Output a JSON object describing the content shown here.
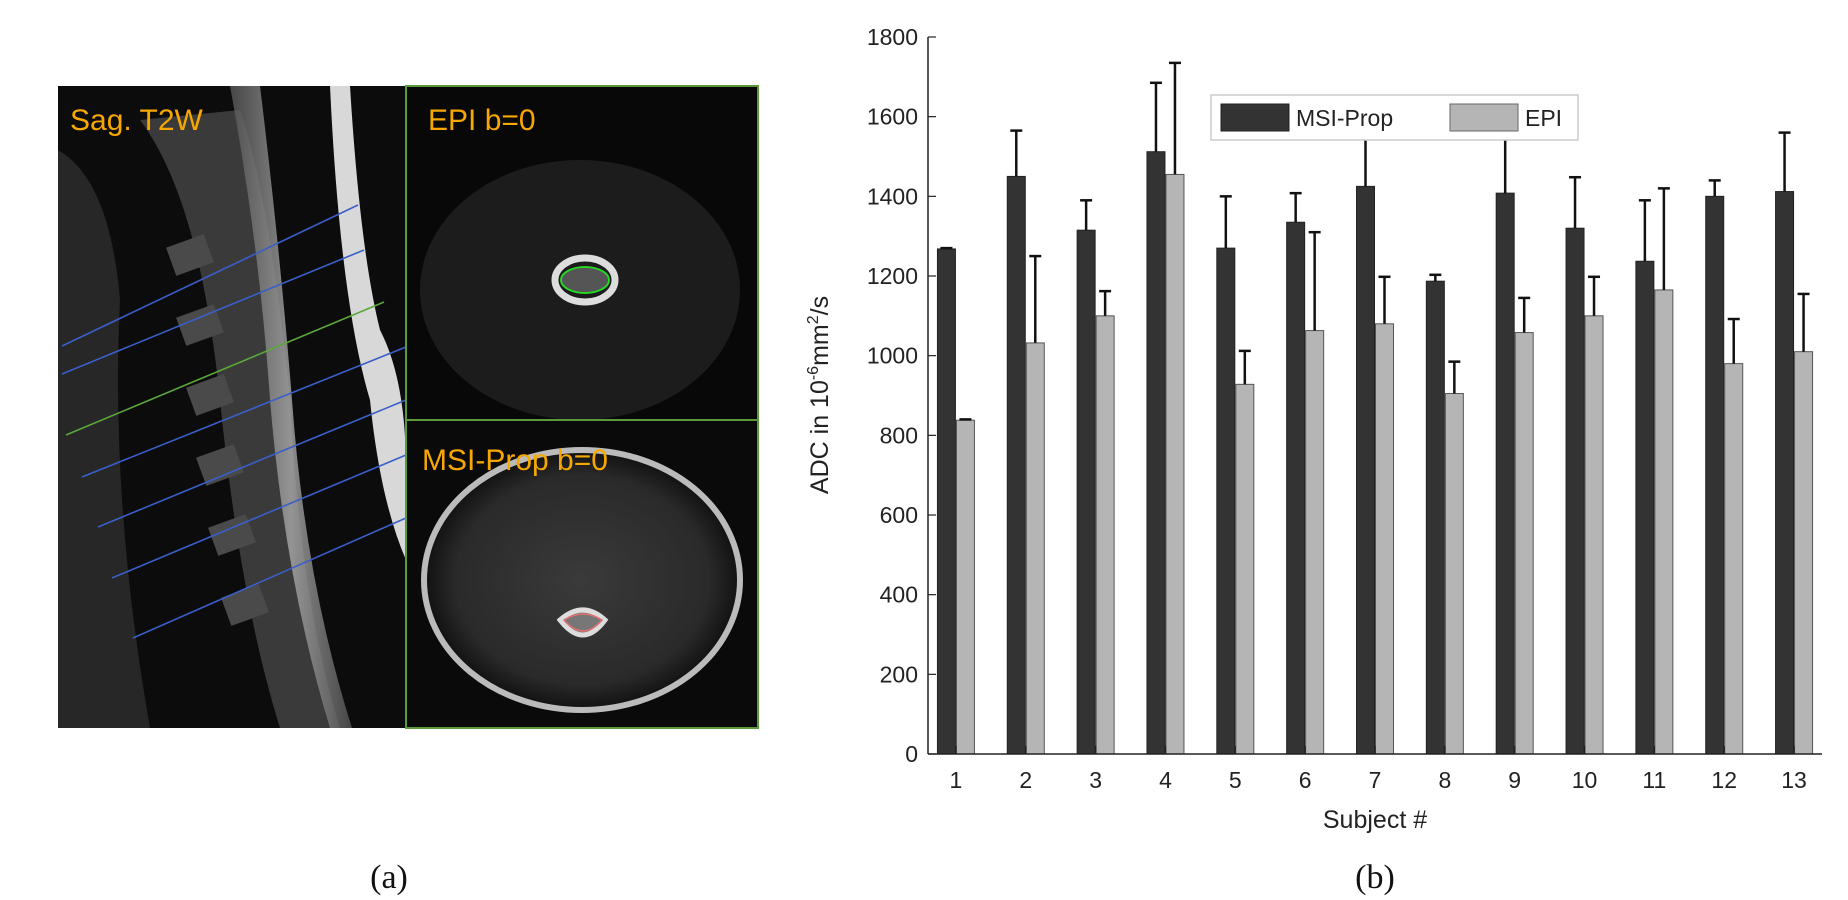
{
  "figure_a": {
    "caption": "(a)",
    "sagittal_label": "Sag. T2W",
    "epi_label": "EPI  b=0",
    "msi_label": "MSI-Prop  b=0",
    "label_color": "#f7a800",
    "slice_line_color": "#3a5fc8",
    "selected_slice_color": "#5aa83a",
    "epi_roi_color": "#22dd22",
    "msi_roi_color": "#e07070",
    "panel_border_color": "#5a9a3a"
  },
  "chart_data": {
    "type": "bar",
    "caption": "(b)",
    "xlabel": "Subject #",
    "ylabel_parts": {
      "base": "ADC in 10",
      "exp1": "-6",
      "mid": "mm",
      "exp2": "2",
      "tail": "/s"
    },
    "ylim": [
      0,
      1800
    ],
    "yticks": [
      0,
      200,
      400,
      600,
      800,
      1000,
      1200,
      1400,
      1600,
      1800
    ],
    "categories": [
      "1",
      "2",
      "3",
      "4",
      "5",
      "6",
      "7",
      "8",
      "9",
      "10",
      "11",
      "12",
      "13"
    ],
    "legend_position": "top-center",
    "grid": false,
    "series": [
      {
        "name": "MSI-Prop",
        "color": "#333333",
        "values": [
          1268,
          1450,
          1315,
          1512,
          1270,
          1335,
          1425,
          1187,
          1408,
          1320,
          1237,
          1400,
          1412
        ],
        "errors_upper": [
          1270,
          1565,
          1390,
          1685,
          1400,
          1408,
          1580,
          1203,
          1565,
          1448,
          1390,
          1440,
          1560
        ]
      },
      {
        "name": "EPI",
        "color": "#b5b5b5",
        "values": [
          838,
          1032,
          1100,
          1455,
          928,
          1063,
          1080,
          905,
          1058,
          1100,
          1165,
          980,
          1010
        ],
        "errors_upper": [
          840,
          1250,
          1162,
          1735,
          1012,
          1310,
          1198,
          985,
          1145,
          1198,
          1420,
          1092,
          1155
        ]
      }
    ]
  }
}
